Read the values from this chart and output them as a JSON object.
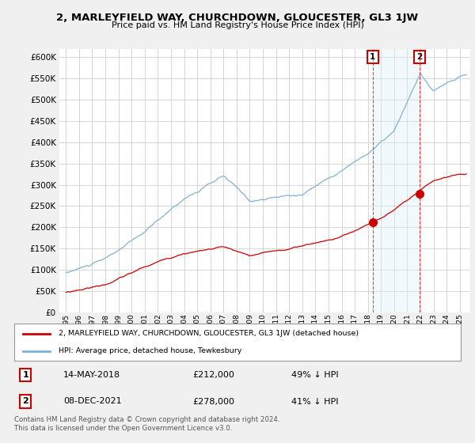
{
  "title": "2, MARLEYFIELD WAY, CHURCHDOWN, GLOUCESTER, GL3 1JW",
  "subtitle": "Price paid vs. HM Land Registry's House Price Index (HPI)",
  "ylim": [
    0,
    620000
  ],
  "yticks": [
    0,
    50000,
    100000,
    150000,
    200000,
    250000,
    300000,
    350000,
    400000,
    450000,
    500000,
    550000,
    600000
  ],
  "legend_label_red": "2, MARLEYFIELD WAY, CHURCHDOWN, GLOUCESTER, GL3 1JW (detached house)",
  "legend_label_blue": "HPI: Average price, detached house, Tewkesbury",
  "annotation1_date": "14-MAY-2018",
  "annotation1_price": "£212,000",
  "annotation1_pct": "49% ↓ HPI",
  "annotation2_date": "08-DEC-2021",
  "annotation2_price": "£278,000",
  "annotation2_pct": "41% ↓ HPI",
  "footer": "Contains HM Land Registry data © Crown copyright and database right 2024.\nThis data is licensed under the Open Government Licence v3.0.",
  "red_color": "#cc0000",
  "blue_color": "#7fb3d3",
  "shade_color": "#dceef7",
  "annotation_color": "#cc0000",
  "background_color": "#f0f0f0",
  "plot_bg_color": "#ffffff",
  "sale1_year": 2018.37,
  "sale2_year": 2021.93,
  "sale1_price": 212000,
  "sale2_price": 278000
}
